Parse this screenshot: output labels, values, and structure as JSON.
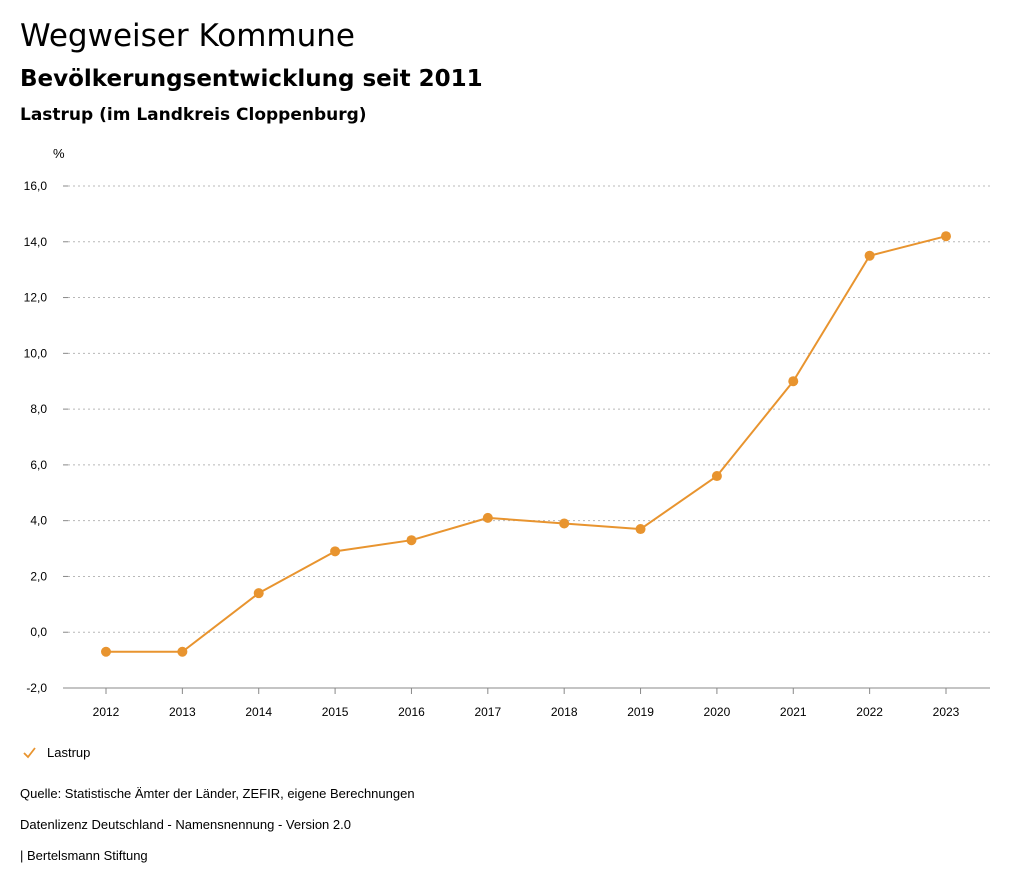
{
  "header": {
    "title": "Wegweiser Kommune",
    "subtitle": "Bevölkerungsentwicklung seit 2011",
    "region": "Lastrup (im Landkreis Cloppenburg)"
  },
  "chart_data": {
    "type": "line",
    "title": "Bevölkerungsentwicklung seit 2011",
    "ylabel": "%",
    "xlabel": "",
    "ylim": [
      -2,
      16
    ],
    "yticks": [
      -2,
      0,
      2,
      4,
      6,
      8,
      10,
      12,
      14,
      16
    ],
    "ytick_labels": [
      "-2,0",
      "0,0",
      "2,0",
      "4,0",
      "6,0",
      "8,0",
      "10,0",
      "12,0",
      "14,0",
      "16,0"
    ],
    "categories": [
      "2012",
      "2013",
      "2014",
      "2015",
      "2016",
      "2017",
      "2018",
      "2019",
      "2020",
      "2021",
      "2022",
      "2023"
    ],
    "grid": true,
    "series": [
      {
        "name": "Lastrup",
        "color": "#E8942F",
        "values": [
          -0.7,
          -0.7,
          1.4,
          2.9,
          3.3,
          4.1,
          3.9,
          3.7,
          5.6,
          9.0,
          13.5,
          14.2
        ]
      }
    ]
  },
  "legend": {
    "label": "Lastrup",
    "color": "#E8942F"
  },
  "footer": {
    "source": "Quelle: Statistische Ämter der Länder, ZEFIR, eigene Berechnungen",
    "license": "Datenlizenz Deutschland - Namensnennung - Version 2.0",
    "brand": "| Bertelsmann Stiftung"
  }
}
